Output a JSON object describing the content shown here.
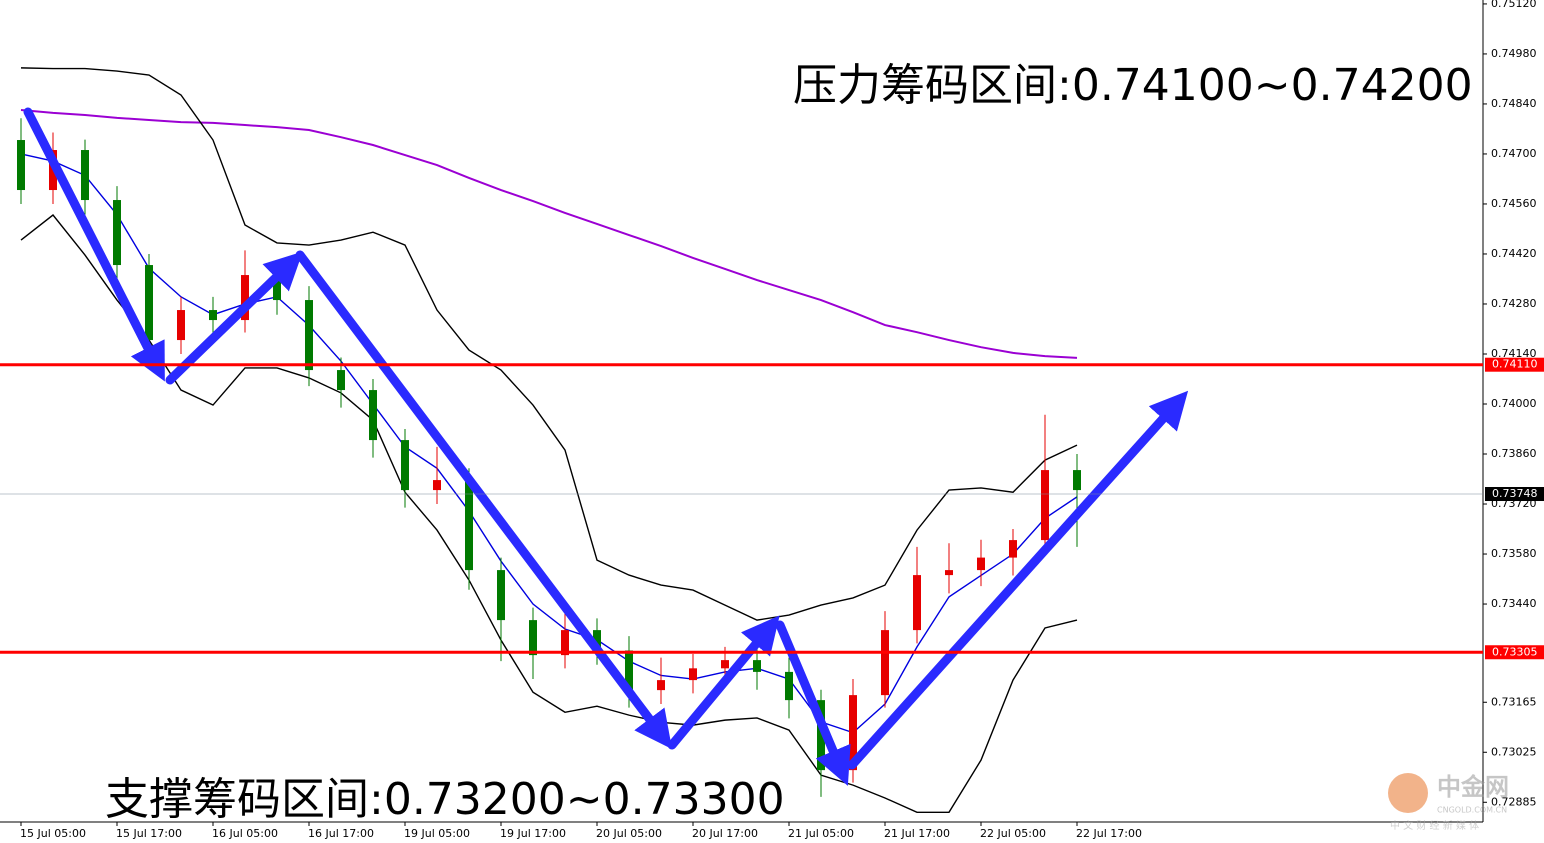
{
  "chart_data": {
    "type": "candlestick",
    "open": [
      0.74739,
      0.74599,
      0.74711,
      0.74571,
      0.74389,
      0.74179,
      0.74263,
      0.74235,
      0.74361,
      0.74291,
      0.74095,
      0.74039,
      0.73899,
      0.73759,
      0.73787,
      0.73535,
      0.73395,
      0.73297,
      0.73367,
      0.7331,
      0.73199,
      0.73227,
      0.7326,
      0.73283,
      0.7325,
      0.73171,
      0.72975,
      0.73185,
      0.73367,
      0.73521,
      0.73535,
      0.7357,
      0.73619,
      0.73815
    ],
    "high": [
      0.748,
      0.7476,
      0.7474,
      0.7461,
      0.7442,
      0.743,
      0.743,
      0.7443,
      0.744,
      0.7433,
      0.7413,
      0.7407,
      0.7393,
      0.7388,
      0.7382,
      0.7357,
      0.7343,
      0.7342,
      0.734,
      0.7335,
      0.7329,
      0.733,
      0.7332,
      0.7333,
      0.7329,
      0.732,
      0.7323,
      0.7342,
      0.736,
      0.7361,
      0.7362,
      0.7365,
      0.7397,
      0.7386
    ],
    "low": [
      0.7456,
      0.7456,
      0.7453,
      0.7435,
      0.7413,
      0.7414,
      0.7419,
      0.742,
      0.7425,
      0.7405,
      0.7399,
      0.7385,
      0.7371,
      0.7372,
      0.7348,
      0.7328,
      0.7323,
      0.7326,
      0.7327,
      0.7315,
      0.7316,
      0.7319,
      0.7323,
      0.732,
      0.7312,
      0.729,
      0.7294,
      0.7315,
      0.7333,
      0.7347,
      0.7349,
      0.7352,
      0.7358,
      0.736
    ],
    "close": [
      0.74599,
      0.74711,
      0.74571,
      0.74389,
      0.74179,
      0.74263,
      0.74235,
      0.74361,
      0.74291,
      0.74095,
      0.74039,
      0.73899,
      0.73759,
      0.73787,
      0.73535,
      0.73395,
      0.73297,
      0.73367,
      0.7331,
      0.73199,
      0.73227,
      0.7326,
      0.73283,
      0.7325,
      0.73171,
      0.72975,
      0.73185,
      0.73367,
      0.73521,
      0.73535,
      0.7357,
      0.73619,
      0.73815,
      0.73759
    ],
    "up_color": "#e60000",
    "down_color": "#007a00",
    "overlays": [
      {
        "color": "#9b00d3",
        "values": [
          0.74823,
          0.74815,
          0.74809,
          0.74801,
          0.74795,
          0.74789,
          0.74787,
          0.74781,
          0.74775,
          0.74767,
          0.74747,
          0.74725,
          0.74697,
          0.74669,
          0.74633,
          0.74599,
          0.74568,
          0.74535,
          0.74504,
          0.74473,
          0.74442,
          0.74409,
          0.74378,
          0.74347,
          0.74319,
          0.74291,
          0.74257,
          0.74221,
          0.74201,
          0.74179,
          0.74159,
          0.74143,
          0.74134,
          0.74129
        ]
      },
      {
        "color": "#000000",
        "values": [
          0.74941,
          0.74939,
          0.74939,
          0.74932,
          0.74921,
          0.74865,
          0.74739,
          0.74501,
          0.74451,
          0.74445,
          0.74459,
          0.74481,
          0.74445,
          0.74263,
          0.74151,
          0.74095,
          0.73997,
          0.73871,
          0.73563,
          0.73521,
          0.73493,
          0.73479,
          0.73437,
          0.73395,
          0.73409,
          0.73437,
          0.73457,
          0.73493,
          0.73647,
          0.73759,
          0.73765,
          0.73753,
          0.73843,
          0.73885
        ]
      },
      {
        "color": "#000000",
        "values": [
          0.74459,
          0.74529,
          0.74417,
          0.74291,
          0.74179,
          0.74039,
          0.73997,
          0.74101,
          0.74101,
          0.74073,
          0.74031,
          0.73955,
          0.73753,
          0.73647,
          0.73507,
          0.73339,
          0.73193,
          0.73137,
          0.73154,
          0.73129,
          0.73109,
          0.73101,
          0.73115,
          0.73121,
          0.73087,
          0.72961,
          0.72933,
          0.72897,
          0.72857,
          0.72857,
          0.73003,
          0.73227,
          0.73373,
          0.73395
        ]
      },
      {
        "color": "#0000e0",
        "values": [
          0.747,
          0.7468,
          0.7464,
          0.7453,
          0.7438,
          0.743,
          0.7425,
          0.7428,
          0.743,
          0.7422,
          0.7412,
          0.74,
          0.7388,
          0.7382,
          0.737,
          0.7356,
          0.7344,
          0.7337,
          0.7334,
          0.7328,
          0.7324,
          0.7323,
          0.7325,
          0.7326,
          0.7323,
          0.7311,
          0.7308,
          0.7316,
          0.7332,
          0.7346,
          0.7352,
          0.7358,
          0.7368,
          0.7374
        ]
      }
    ],
    "levels": [
      {
        "value": 0.7411,
        "label": "0.74110",
        "color": "#ff0000"
      },
      {
        "value": 0.73305,
        "label": "0.73305",
        "color": "#ff0000"
      },
      {
        "value": 0.73748,
        "label": "0.73748",
        "color": "#000000"
      }
    ],
    "ylim": [
      0.72771,
      0.75131
    ],
    "yticks": [
      {
        "value": 0.7512,
        "label": "0.75120"
      },
      {
        "value": 0.7498,
        "label": "0.74980"
      },
      {
        "value": 0.7484,
        "label": "0.74840"
      },
      {
        "value": 0.747,
        "label": "0.74700"
      },
      {
        "value": 0.7456,
        "label": "0.74560"
      },
      {
        "value": 0.7442,
        "label": "0.74420"
      },
      {
        "value": 0.7428,
        "label": "0.74280"
      },
      {
        "value": 0.7414,
        "label": "0.74140"
      },
      {
        "value": 0.74,
        "label": "0.74000"
      },
      {
        "value": 0.7386,
        "label": "0.73860"
      },
      {
        "value": 0.7372,
        "label": "0.73720"
      },
      {
        "value": 0.7358,
        "label": "0.73580"
      },
      {
        "value": 0.7344,
        "label": "0.73440"
      },
      {
        "value": 0.73165,
        "label": "0.73165"
      },
      {
        "value": 0.73025,
        "label": "0.73025"
      },
      {
        "value": 0.72885,
        "label": "0.72885"
      }
    ],
    "xticks": [
      {
        "value": 0,
        "label": "15 Jul 05:00"
      },
      {
        "value": 3,
        "label": "15 Jul 17:00"
      },
      {
        "value": 6,
        "label": "16 Jul 05:00"
      },
      {
        "value": 9,
        "label": "16 Jul 17:00"
      },
      {
        "value": 12,
        "label": "19 Jul 05:00"
      },
      {
        "value": 15,
        "label": "19 Jul 17:00"
      },
      {
        "value": 18,
        "label": "20 Jul 05:00"
      },
      {
        "value": 21,
        "label": "20 Jul 17:00"
      },
      {
        "value": 24,
        "label": "21 Jul 05:00"
      },
      {
        "value": 27,
        "label": "21 Jul 17:00"
      },
      {
        "value": 30,
        "label": "22 Jul 05:00"
      },
      {
        "value": 33,
        "label": "22 Jul 17:00"
      }
    ],
    "annotations": [
      "压力筹码区间:0.74100~0.74200",
      "支撑筹码区间:0.73200~0.73300"
    ]
  },
  "watermark": {
    "name": "中金网",
    "site": "CNGOLD.COM.CN",
    "slogan": "中 文 财 经 新 媒 体"
  }
}
